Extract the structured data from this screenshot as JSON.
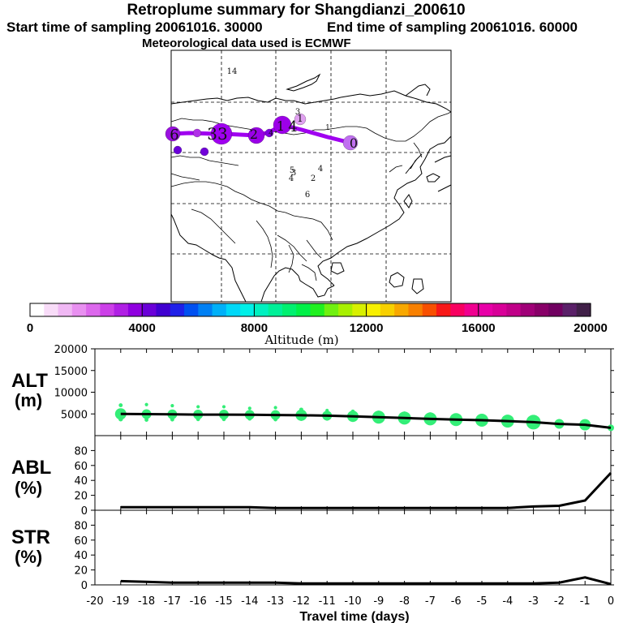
{
  "header": {
    "title": "Retroplume summary for Shangdianzi_200610",
    "start": "Start time of sampling 20061016. 30000",
    "end": "End time of sampling 20061016. 60000",
    "met": "Meteorological data used is ECMWF"
  },
  "colorbar": {
    "label": "Altitude (m)",
    "tick_labels": [
      "0",
      "4000",
      "8000",
      "12000",
      "16000",
      "20000"
    ],
    "colors": [
      "#ffffff",
      "#f8dcf8",
      "#f0b8f4",
      "#e890f0",
      "#dc68ec",
      "#cc40e8",
      "#b020e4",
      "#9000e0",
      "#6a00d8",
      "#4000d0",
      "#2020e8",
      "#0050f0",
      "#0080f4",
      "#00b0f8",
      "#00d8f8",
      "#00f0e8",
      "#00f0c0",
      "#00f098",
      "#00f070",
      "#00f048",
      "#20f020",
      "#70f010",
      "#a8f000",
      "#d8f000",
      "#f8f000",
      "#f8d000",
      "#f8a800",
      "#f88000",
      "#f85000",
      "#f81818",
      "#f80060",
      "#f00090",
      "#e800a8",
      "#d80098",
      "#c00088",
      "#a00078",
      "#880068",
      "#700060",
      "#5a2068",
      "#402048"
    ]
  },
  "map": {
    "cluster_labels": [
      "14",
      "3",
      "1",
      "33",
      "6",
      "2",
      "4",
      "1",
      "4",
      "1",
      "0",
      "5",
      "4",
      "3",
      "2",
      "4",
      "6"
    ],
    "plume_color": "#a600e8",
    "line_color": "#a000f0"
  },
  "panels": {
    "alt_label": "ALT",
    "alt_unit": "(m)",
    "abl_label": "ABL",
    "abl_unit": "(%)",
    "str_label": "STR",
    "str_unit": "(%)",
    "xlabel": "Travel time (days)",
    "marker_color": "#33ee77"
  },
  "chart_data": [
    {
      "type": "line",
      "title": "ALT",
      "ylabel": "(m)",
      "ylim": [
        0,
        20000
      ],
      "yticks": [
        5000,
        10000,
        15000,
        20000
      ],
      "x": [
        -19,
        -18,
        -17,
        -16,
        -15,
        -14,
        -13,
        -12,
        -11,
        -10,
        -9,
        -8,
        -7,
        -6,
        -5,
        -4,
        -3,
        -2,
        -1,
        0
      ],
      "values": [
        5000,
        4950,
        4900,
        4850,
        4850,
        4800,
        4750,
        4700,
        4600,
        4450,
        4250,
        4050,
        3850,
        3700,
        3550,
        3350,
        3100,
        2700,
        2500,
        1800
      ],
      "marker_sizes": [
        7,
        6,
        6,
        6,
        6,
        6,
        6,
        7,
        6,
        7,
        8,
        8,
        8,
        8,
        8,
        8,
        9,
        6,
        7,
        4
      ],
      "marker_spread": [
        2000,
        2200,
        2000,
        1800,
        1800,
        1500,
        1700,
        1300,
        1200,
        1100,
        1000,
        1000,
        1000,
        900,
        900,
        800,
        600,
        500,
        400,
        0
      ]
    },
    {
      "type": "line",
      "title": "ABL",
      "ylabel": "(%)",
      "ylim": [
        0,
        100
      ],
      "yticks": [
        0,
        20,
        40,
        60,
        80
      ],
      "x": [
        -19,
        -18,
        -17,
        -16,
        -15,
        -14,
        -13,
        -12,
        -11,
        -10,
        -9,
        -8,
        -7,
        -6,
        -5,
        -4,
        -3,
        -2,
        -1,
        0
      ],
      "values": [
        4,
        4,
        4,
        4,
        4,
        4,
        3,
        3,
        3,
        3,
        3,
        3,
        3,
        3,
        3,
        3,
        5,
        6,
        13,
        50
      ]
    },
    {
      "type": "line",
      "title": "STR",
      "ylabel": "(%)",
      "xlabel": "Travel time (days)",
      "ylim": [
        0,
        100
      ],
      "yticks": [
        0,
        20,
        40,
        60,
        80
      ],
      "xlim": [
        -20,
        0
      ],
      "xtick_labels": [
        "-20",
        "-19",
        "-18",
        "-17",
        "-16",
        "-15",
        "-14",
        "-13",
        "-12",
        "-11",
        "-10",
        "-9",
        "-8",
        "-7",
        "-6",
        "-5",
        "-4",
        "-3",
        "-2",
        "-1",
        "0"
      ],
      "x": [
        -19,
        -18,
        -17,
        -16,
        -15,
        -14,
        -13,
        -12,
        -11,
        -10,
        -9,
        -8,
        -7,
        -6,
        -5,
        -4,
        -3,
        -2,
        -1,
        0
      ],
      "values": [
        5,
        4,
        3,
        3,
        3,
        3,
        3,
        2,
        2,
        2,
        2,
        2,
        2,
        2,
        2,
        2,
        2,
        3,
        10,
        1
      ]
    }
  ]
}
